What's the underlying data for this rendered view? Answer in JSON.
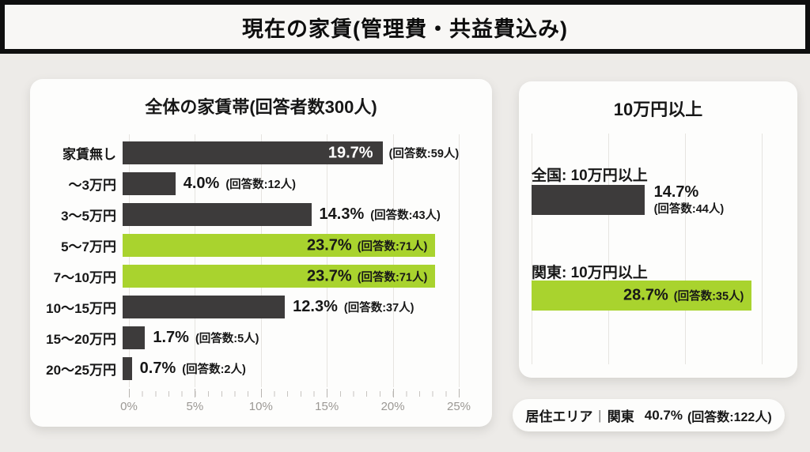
{
  "ui": {
    "header": {
      "title": "現在の家賃(管理費・共益費込み)"
    },
    "left_card": {
      "title": "全体の家賃帯(回答者数300人)",
      "rows": [
        {
          "label": "家賃無し",
          "pct": "19.7%",
          "count": "(回答数:59人)"
        },
        {
          "label": "〜3万円",
          "pct": "4.0%",
          "count": "(回答数:12人)"
        },
        {
          "label": "3〜5万円",
          "pct": "14.3%",
          "count": "(回答数:43人)"
        },
        {
          "label": "5〜7万円",
          "pct": "23.7%",
          "count": "(回答数:71人)"
        },
        {
          "label": "7〜10万円",
          "pct": "23.7%",
          "count": "(回答数:71人)"
        },
        {
          "label": "10〜15万円",
          "pct": "12.3%",
          "count": "(回答数:37人)"
        },
        {
          "label": "15〜20万円",
          "pct": "1.7%",
          "count": "(回答数:5人)"
        },
        {
          "label": "20〜25万円",
          "pct": "0.7%",
          "count": "(回答数:2人)"
        }
      ],
      "axis_ticks": [
        "0%",
        "5%",
        "10%",
        "15%",
        "20%",
        "25%"
      ]
    },
    "right_card": {
      "title": "10万円以上",
      "groups": [
        {
          "label": "全国: 10万円以上",
          "pct": "14.7%",
          "count": "(回答数:44人)"
        },
        {
          "label": "関東: 10万円以上",
          "pct": "28.7%",
          "count": "(回答数:35人)"
        }
      ]
    },
    "footer": {
      "area_label": "居住エリア",
      "separator": "|",
      "region": "関東",
      "pct": "40.7%",
      "count": "(回答数:122人)"
    }
  },
  "chart_data": [
    {
      "type": "bar",
      "orientation": "horizontal",
      "title": "全体の家賃帯(回答者数300人)",
      "categories": [
        "家賃無し",
        "〜3万円",
        "3〜5万円",
        "5〜7万円",
        "7〜10万円",
        "10〜15万円",
        "15〜20万円",
        "20〜25万円"
      ],
      "values": [
        19.7,
        4.0,
        14.3,
        23.7,
        23.7,
        12.3,
        1.7,
        0.7
      ],
      "counts": [
        59,
        12,
        43,
        71,
        71,
        37,
        5,
        2
      ],
      "value_unit": "%",
      "xlabel": "",
      "ylabel": "",
      "xlim": [
        0,
        25
      ],
      "x_tick_labels": [
        "0%",
        "5%",
        "10%",
        "15%",
        "20%",
        "25%"
      ],
      "minor_tick_interval": 1,
      "grid": true,
      "highlighted_categories": [
        "5〜7万円",
        "7〜10万円"
      ],
      "bar_color_default": "#3d3b3b",
      "bar_color_highlight": "#a9d32e"
    },
    {
      "type": "bar",
      "orientation": "horizontal",
      "title": "10万円以上",
      "categories": [
        "全国: 10万円以上",
        "関東: 10万円以上"
      ],
      "values": [
        14.7,
        28.7
      ],
      "counts": [
        44,
        35
      ],
      "value_unit": "%",
      "xlim": [
        0,
        30
      ],
      "grid_interval": 10,
      "grid": true,
      "x_tick_labels": [],
      "highlighted_categories": [
        "関東: 10万円以上"
      ],
      "bar_color_default": "#3d3b3b",
      "bar_color_highlight": "#a9d32e"
    }
  ],
  "colors": {
    "page_bg": "#edebe8",
    "card_bg": "#fdfdfc",
    "bar_dark": "#3d3b3b",
    "bar_green": "#a9d32e",
    "header_bg": "#f8f7f5",
    "header_border": "#0f0f0f",
    "axis_text": "#9b9894",
    "gridline": "#e6e4e0"
  }
}
